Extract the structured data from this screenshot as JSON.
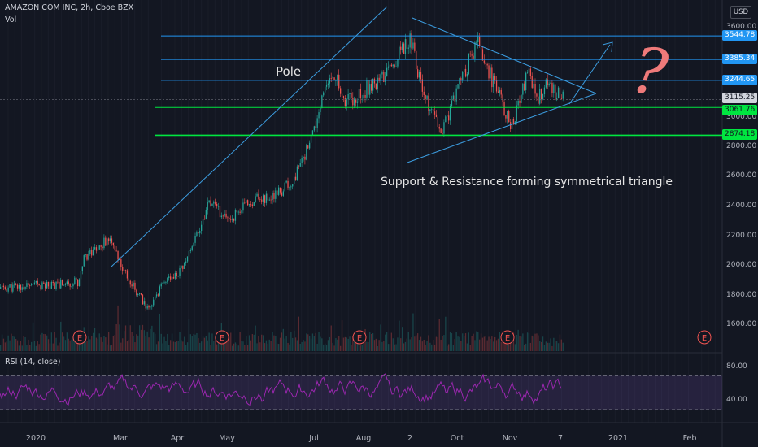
{
  "header": {
    "symbol": "AMAZON COM INC, 2h, Cboe BZX",
    "volume_label": "Vol"
  },
  "currency_button": "USD",
  "rsi_label": "RSI (14, close)",
  "annotations": {
    "pole": "Pole",
    "triangle_note": "Support & Resistance forming symmetrical triangle",
    "question_mark": "?"
  },
  "price_axis_ticks": [
    "3600.00",
    "3000.00",
    "2800.00",
    "2600.00",
    "2400.00",
    "2200.00",
    "2000.00",
    "1800.00",
    "1600.00"
  ],
  "rsi_axis_ticks": [
    "80.00",
    "40.00"
  ],
  "horizontal_levels": [
    {
      "price": 3544.78,
      "label": "3544.78",
      "color": "#2196f3"
    },
    {
      "price": 3385.34,
      "label": "3385.34",
      "color": "#2196f3"
    },
    {
      "price": 3244.65,
      "label": "3244.65",
      "color": "#2196f3"
    },
    {
      "price": 3061.76,
      "label": "3061.76",
      "color": "#00e640"
    },
    {
      "price": 2874.18,
      "label": "2874.18",
      "color": "#00e640"
    }
  ],
  "current_price": {
    "price": 3115.25,
    "label": "3115.25",
    "color": "#d1d4dc"
  },
  "earnings_marker": "E",
  "x_axis_labels": [
    "2020",
    "Mar",
    "Apr",
    "May",
    "Jul",
    "Aug",
    "2",
    "Oct",
    "Nov",
    "7",
    "2021",
    "Feb"
  ],
  "colors": {
    "background": "#131722",
    "up_candle": "#26a69a",
    "down_candle": "#ef5350",
    "trendline": "#3c9de0",
    "rsi_line": "#9c27b0",
    "rsi_band": "#7e57c2",
    "question_mark": "#ef7a7a",
    "grid": "#1e222d"
  },
  "chart_data": [
    {
      "type": "candlestick",
      "title": "AMAZON COM INC, 2h, Cboe BZX",
      "ylabel": "",
      "ylim": [
        1500,
        3650
      ],
      "key_points": [
        {
          "x": "2020-01-01",
          "y": 1860
        },
        {
          "x": "2020-01-15",
          "y": 1870
        },
        {
          "x": "2020-02-01",
          "y": 1890
        },
        {
          "x": "2020-02-03",
          "y": 2050
        },
        {
          "x": "2020-02-18",
          "y": 2150
        },
        {
          "x": "2020-02-21",
          "y": 2180
        },
        {
          "x": "2020-03-01",
          "y": 2000
        },
        {
          "x": "2020-03-16",
          "y": 1690
        },
        {
          "x": "2020-03-25",
          "y": 1900
        },
        {
          "x": "2020-04-01",
          "y": 1920
        },
        {
          "x": "2020-04-14",
          "y": 2250
        },
        {
          "x": "2020-04-20",
          "y": 2420
        },
        {
          "x": "2020-05-01",
          "y": 2300
        },
        {
          "x": "2020-05-20",
          "y": 2450
        },
        {
          "x": "2020-06-01",
          "y": 2450
        },
        {
          "x": "2020-06-15",
          "y": 2550
        },
        {
          "x": "2020-06-25",
          "y": 2750
        },
        {
          "x": "2020-07-01",
          "y": 2900
        },
        {
          "x": "2020-07-06",
          "y": 3130
        },
        {
          "x": "2020-07-13",
          "y": 3300
        },
        {
          "x": "2020-07-20",
          "y": 3100
        },
        {
          "x": "2020-07-31",
          "y": 3170
        },
        {
          "x": "2020-08-15",
          "y": 3280
        },
        {
          "x": "2020-09-02",
          "y": 3540
        },
        {
          "x": "2020-09-10",
          "y": 3150
        },
        {
          "x": "2020-09-21",
          "y": 2870
        },
        {
          "x": "2020-10-01",
          "y": 3200
        },
        {
          "x": "2020-10-13",
          "y": 3500
        },
        {
          "x": "2020-10-20",
          "y": 3300
        },
        {
          "x": "2020-11-02",
          "y": 2950
        },
        {
          "x": "2020-11-09",
          "y": 3100
        },
        {
          "x": "2020-11-14",
          "y": 3350
        },
        {
          "x": "2020-11-20",
          "y": 3100
        },
        {
          "x": "2020-11-26",
          "y": 3200
        },
        {
          "x": "2020-12-03",
          "y": 3160
        },
        {
          "x": "2020-12-08",
          "y": 3115
        }
      ],
      "rsi": {
        "label": "RSI (14, close)",
        "ylim": [
          20,
          100
        ],
        "upper_band": 70,
        "lower_band": 30
      }
    }
  ]
}
